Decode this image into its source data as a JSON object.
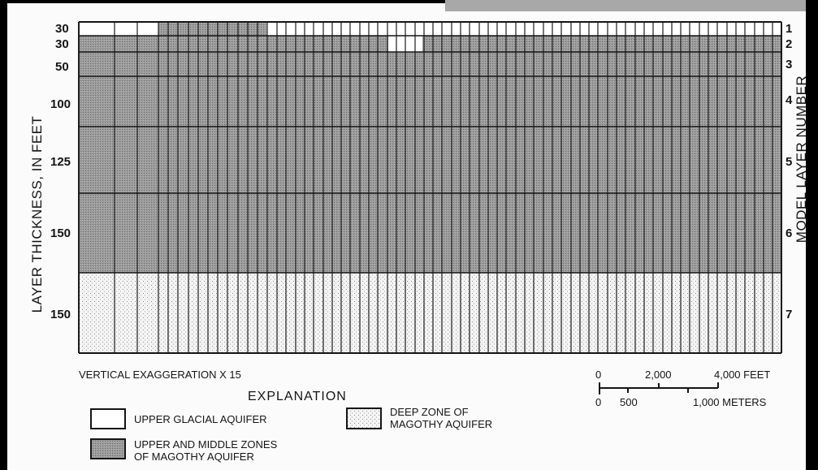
{
  "figure": {
    "left_axis_label": "LAYER THICKNESS, IN FEET",
    "right_axis_label": "MODEL LAYER NUMBER",
    "layers": [
      {
        "number": "1",
        "thickness": "30"
      },
      {
        "number": "2",
        "thickness": "30"
      },
      {
        "number": "3",
        "thickness": "50"
      },
      {
        "number": "4",
        "thickness": "100"
      },
      {
        "number": "5",
        "thickness": "125"
      },
      {
        "number": "6",
        "thickness": "150"
      },
      {
        "number": "7",
        "thickness": "150"
      }
    ],
    "vertical_exaggeration": "VERTICAL EXAGGERATION X 15",
    "scale_bar": {
      "feet_labels": [
        "0",
        "2,000",
        "4,000 FEET"
      ],
      "meter_labels": [
        "0",
        "500",
        "1,000 METERS"
      ]
    },
    "explanation": {
      "title": "EXPLANATION",
      "upper_glacial_line1": "UPPER GLACIAL AQUIFER",
      "upper_middle_line1": "UPPER AND MIDDLE ZONES",
      "upper_middle_line2": "OF MAGOTHY AQUIFER",
      "deep_line1": "DEEP ZONE OF",
      "deep_line2": "MAGOTHY AQUIFER"
    }
  }
}
